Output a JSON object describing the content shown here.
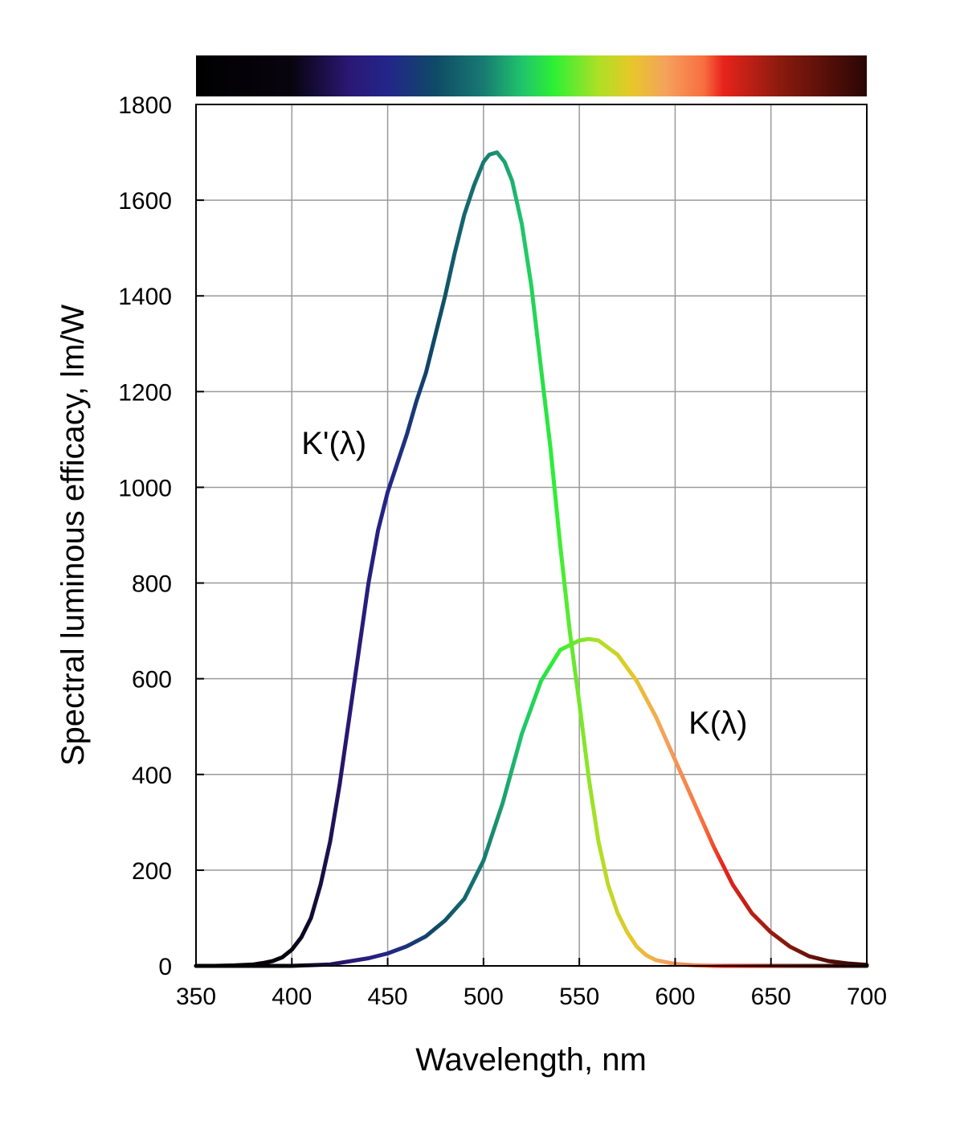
{
  "chart_data": {
    "type": "line",
    "xlabel": "Wavelength, nm",
    "ylabel": "Spectral luminous efficacy, lm/W",
    "xlim": [
      350,
      700
    ],
    "ylim": [
      0,
      1800
    ],
    "x_ticks": [
      350,
      400,
      450,
      500,
      550,
      600,
      650,
      700
    ],
    "y_ticks": [
      0,
      200,
      400,
      600,
      800,
      1000,
      1200,
      1400,
      1600,
      1800
    ],
    "grid": true,
    "legend": "none",
    "colorbar": {
      "position": "top",
      "stops": [
        {
          "nm": 350,
          "color": "#000000"
        },
        {
          "nm": 400,
          "color": "#08040f"
        },
        {
          "nm": 430,
          "color": "#2a1874"
        },
        {
          "nm": 450,
          "color": "#23258a"
        },
        {
          "nm": 475,
          "color": "#0f4a66"
        },
        {
          "nm": 500,
          "color": "#187a72"
        },
        {
          "nm": 520,
          "color": "#1fc46c"
        },
        {
          "nm": 537,
          "color": "#2ef034"
        },
        {
          "nm": 560,
          "color": "#aee026"
        },
        {
          "nm": 577,
          "color": "#e6c828"
        },
        {
          "nm": 595,
          "color": "#f4a25c"
        },
        {
          "nm": 615,
          "color": "#f86e40"
        },
        {
          "nm": 625,
          "color": "#e8241c"
        },
        {
          "nm": 655,
          "color": "#8a1a0e"
        },
        {
          "nm": 700,
          "color": "#2a0604"
        }
      ]
    },
    "series": [
      {
        "name": "K'(λ)",
        "label_position_nm": [
          405,
          1070
        ],
        "x": [
          350,
          360,
          370,
          380,
          385,
          390,
          395,
          400,
          405,
          410,
          415,
          420,
          425,
          430,
          435,
          440,
          445,
          450,
          455,
          460,
          465,
          470,
          475,
          480,
          485,
          490,
          495,
          500,
          503,
          507,
          511,
          515,
          520,
          525,
          530,
          535,
          540,
          545,
          550,
          555,
          560,
          565,
          570,
          575,
          580,
          585,
          590,
          600,
          610,
          620,
          630,
          650,
          700
        ],
        "y": [
          0,
          0,
          1,
          3,
          6,
          10,
          18,
          34,
          60,
          100,
          170,
          260,
          380,
          520,
          660,
          800,
          910,
          990,
          1050,
          1110,
          1180,
          1240,
          1320,
          1400,
          1490,
          1570,
          1630,
          1680,
          1695,
          1700,
          1680,
          1640,
          1550,
          1420,
          1250,
          1080,
          880,
          700,
          550,
          390,
          260,
          170,
          110,
          70,
          40,
          22,
          12,
          4,
          1,
          0,
          0,
          0,
          0
        ]
      },
      {
        "name": "K(λ)",
        "label_position_nm": [
          607,
          485
        ],
        "x": [
          350,
          380,
          400,
          420,
          440,
          450,
          460,
          470,
          480,
          490,
          500,
          510,
          520,
          530,
          540,
          550,
          555,
          560,
          570,
          580,
          590,
          600,
          610,
          620,
          630,
          640,
          650,
          660,
          670,
          680,
          690,
          700
        ],
        "y": [
          0,
          0,
          0,
          3,
          16,
          26,
          41,
          62,
          95,
          140,
          220,
          340,
          485,
          595,
          660,
          680,
          683,
          680,
          650,
          595,
          520,
          430,
          340,
          250,
          170,
          110,
          70,
          40,
          20,
          10,
          5,
          2
        ]
      }
    ]
  }
}
